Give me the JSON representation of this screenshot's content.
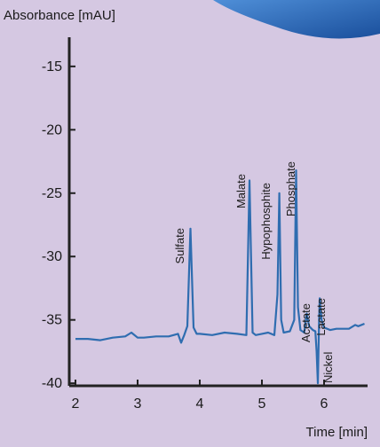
{
  "chart_data": {
    "type": "line",
    "ylabel": "Absorbance [mAU]",
    "xlabel": "Time [min]",
    "x": [
      2.0,
      2.2,
      2.4,
      2.6,
      2.8,
      2.9,
      3.0,
      3.1,
      3.3,
      3.5,
      3.65,
      3.7,
      3.75,
      3.8,
      3.85,
      3.9,
      3.95,
      4.0,
      4.2,
      4.4,
      4.6,
      4.75,
      4.8,
      4.85,
      4.9,
      5.0,
      5.1,
      5.2,
      5.25,
      5.28,
      5.31,
      5.35,
      5.45,
      5.52,
      5.55,
      5.58,
      5.62,
      5.68,
      5.72,
      5.76,
      5.82,
      5.86,
      5.88,
      5.9,
      5.92,
      5.93,
      5.96,
      6.0,
      6.1,
      6.2,
      6.4,
      6.5,
      6.55,
      6.65
    ],
    "series": [
      {
        "color": "#2f6db0",
        "values": [
          -36.5,
          -36.5,
          -36.6,
          -36.4,
          -36.3,
          -36.0,
          -36.4,
          -36.4,
          -36.3,
          -36.3,
          -36.1,
          -36.8,
          -36.2,
          -35.5,
          -27.8,
          -35.6,
          -36.1,
          -36.1,
          -36.2,
          -36.0,
          -36.1,
          -36.2,
          -24.0,
          -36.0,
          -36.2,
          -36.1,
          -36.0,
          -36.2,
          -33.0,
          -25.0,
          -35.0,
          -36.0,
          -35.9,
          -35.0,
          -23.2,
          -34.0,
          -35.8,
          -36.0,
          -34.5,
          -35.5,
          -35.8,
          -35.9,
          -37.5,
          -40.0,
          -35.0,
          -33.3,
          -35.0,
          -35.6,
          -35.8,
          -35.7,
          -35.7,
          -35.4,
          -35.5,
          -35.3
        ]
      }
    ],
    "annotations": [
      "Sulfate",
      "Malate",
      "Hypophosphite",
      "Phosphate",
      "Acetate",
      "Lactate",
      "Nickel"
    ],
    "xlim": [
      1.9,
      6.7
    ],
    "ylim": [
      -40.2,
      -12.7
    ],
    "xticks": [
      2,
      3,
      4,
      5,
      6
    ],
    "yticks": [
      -15,
      -20,
      -25,
      -30,
      -35,
      -40
    ],
    "grid": false
  }
}
